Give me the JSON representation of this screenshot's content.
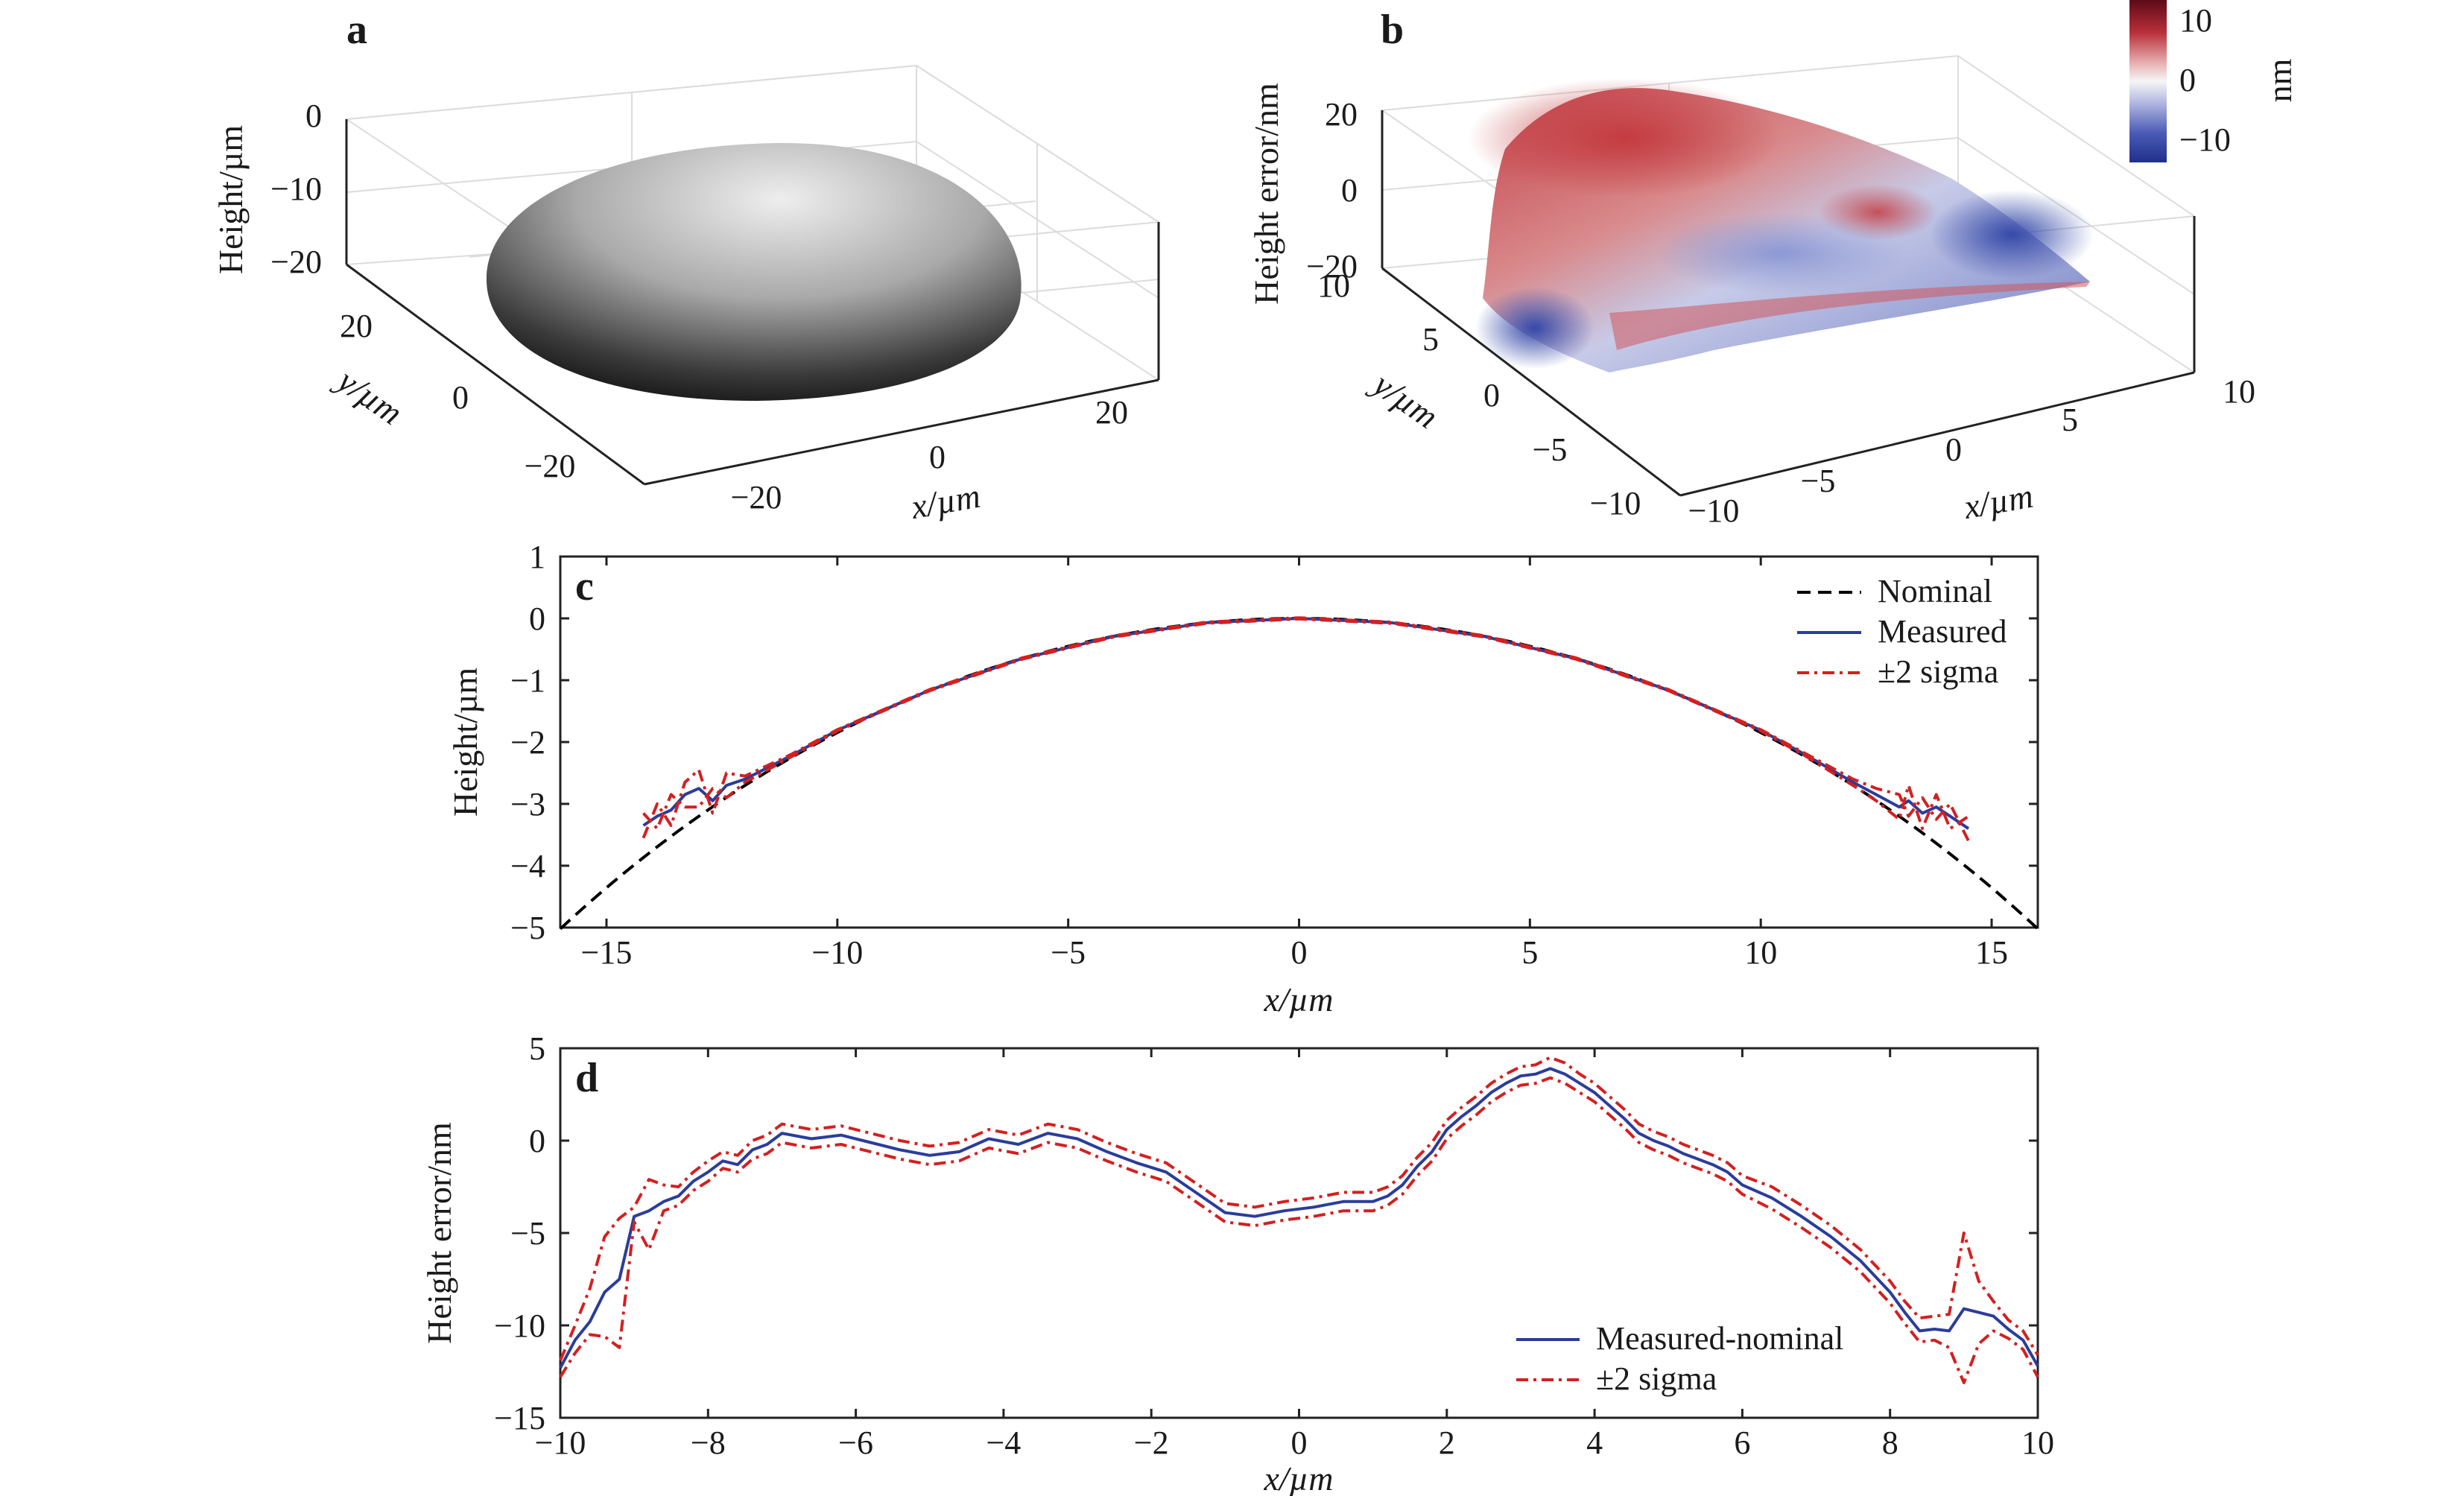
{
  "chart_data": [
    {
      "panel": "a",
      "type": "surface",
      "description_free": true,
      "zlabel": "Height/µm",
      "xlabel": "x/µm",
      "ylabel": "y/µm",
      "z_ticks": [
        "0",
        "−10",
        "−20"
      ],
      "y_ticks": [
        "20",
        "0",
        "−20"
      ],
      "x_ticks": [
        "−20",
        "0",
        "20"
      ],
      "x_range": [
        -30,
        30
      ],
      "y_range": [
        -30,
        30
      ],
      "z_range": [
        -25,
        0
      ],
      "colormap": "gray",
      "colors": {
        "surface_top": "#e6e6e6",
        "surface_bottom": "#111111"
      }
    },
    {
      "panel": "b",
      "type": "surface",
      "zlabel": "Height error/nm",
      "xlabel": "x/µm",
      "ylabel": "y/µm",
      "z_ticks": [
        "20",
        "0",
        "−20"
      ],
      "y_ticks": [
        "10",
        "5",
        "0",
        "−5",
        "−10"
      ],
      "x_ticks": [
        "−10",
        "−5",
        "0",
        "5",
        "10"
      ],
      "x_range": [
        -10,
        10
      ],
      "y_range": [
        -10,
        10
      ],
      "z_range": [
        -20,
        20
      ],
      "colorbar": {
        "label": "nm",
        "ticks": [
          "10",
          "0",
          "−10"
        ],
        "range": [
          -14,
          14
        ]
      },
      "colors": {
        "high": "#7a0b1c",
        "mid": "#f7f7f7",
        "low": "#2a3f9e"
      }
    },
    {
      "panel": "c",
      "type": "line",
      "xlabel": "x/µm",
      "ylabel": "Height/µm",
      "xlim": [
        -16,
        16
      ],
      "ylim": [
        -5,
        1
      ],
      "x_ticks": [
        "−15",
        "−10",
        "−5",
        "0",
        "5",
        "10",
        "15"
      ],
      "y_ticks": [
        "1",
        "0",
        "−1",
        "−2",
        "−3",
        "−4",
        "−5"
      ],
      "legend": [
        "Nominal",
        "Measured",
        "±2 sigma"
      ],
      "legend_position": "top-right",
      "series": [
        {
          "name": "Nominal",
          "style": "dashed",
          "color": "#000000",
          "curve": "circle",
          "radius_um": 28,
          "x": [
            -16,
            16
          ]
        },
        {
          "name": "Measured",
          "style": "solid",
          "color": "#2b3d9a",
          "x": [
            -14.2,
            -13.9,
            -13.6,
            -13.3,
            -13.0,
            -12.7,
            -12.4,
            -12.0,
            -11.0,
            -10.0,
            -8.0,
            -6.0,
            -4.0,
            -2.0,
            0.0,
            2.0,
            4.0,
            6.0,
            8.0,
            10.0,
            11.0,
            12.0,
            12.5,
            13.0,
            13.2,
            13.5,
            13.8,
            14.1,
            14.5
          ],
          "y": [
            -3.35,
            -3.2,
            -3.1,
            -2.85,
            -2.75,
            -2.95,
            -2.7,
            -2.6,
            -2.22,
            -1.81,
            -1.16,
            -0.65,
            -0.29,
            -0.07,
            0.0,
            -0.07,
            -0.29,
            -0.65,
            -1.16,
            -1.81,
            -2.22,
            -2.65,
            -2.85,
            -3.05,
            -2.95,
            -3.15,
            -3.05,
            -3.2,
            -3.4
          ]
        },
        {
          "name": "±2 sigma",
          "style": "dashdot",
          "color": "#d32020",
          "x": [
            -14.2,
            -13.9,
            -13.6,
            -13.3,
            -13.0,
            -12.7,
            -12.4,
            -12.0,
            -11.0,
            -10.0,
            -8.0,
            -6.0,
            -4.0,
            -2.0,
            0.0,
            2.0,
            4.0,
            6.0,
            8.0,
            10.0,
            11.0,
            12.0,
            12.5,
            13.0,
            13.2,
            13.5,
            13.8,
            14.1,
            14.5
          ],
          "y": [
            -3.55,
            -3.0,
            -3.35,
            -2.65,
            -2.45,
            -3.15,
            -2.5,
            -2.55,
            -2.2,
            -1.8,
            -1.15,
            -0.64,
            -0.28,
            -0.06,
            0.01,
            -0.06,
            -0.28,
            -0.64,
            -1.15,
            -1.8,
            -2.2,
            -2.6,
            -2.75,
            -2.85,
            -3.2,
            -2.9,
            -3.25,
            -3.0,
            -3.6
          ]
        },
        {
          "name": "±2 sigma lower",
          "style": "dashdot",
          "color": "#d32020",
          "x": [
            -14.2,
            -13.9,
            -13.6,
            -13.3,
            -13.0,
            -12.7,
            -12.4,
            -12.0,
            -11.0,
            -10.0,
            -8.0,
            -6.0,
            -4.0,
            -2.0,
            0.0,
            2.0,
            4.0,
            6.0,
            8.0,
            10.0,
            11.0,
            12.0,
            12.5,
            13.0,
            13.2,
            13.5,
            13.8,
            14.1,
            14.5
          ],
          "y": [
            -3.15,
            -3.4,
            -2.85,
            -3.05,
            -3.05,
            -2.75,
            -2.9,
            -2.65,
            -2.24,
            -1.82,
            -1.17,
            -0.66,
            -0.3,
            -0.08,
            -0.01,
            -0.08,
            -0.3,
            -0.66,
            -1.17,
            -1.82,
            -2.24,
            -2.7,
            -2.95,
            -3.25,
            -2.7,
            -3.4,
            -2.85,
            -3.4,
            -3.2
          ]
        }
      ]
    },
    {
      "panel": "d",
      "type": "line",
      "xlabel": "x/µm",
      "ylabel": "Height error/nm",
      "xlim": [
        -10,
        10
      ],
      "ylim": [
        -15,
        5
      ],
      "x_ticks": [
        "−10",
        "−8",
        "−6",
        "−4",
        "−2",
        "0",
        "2",
        "4",
        "6",
        "8",
        "10"
      ],
      "y_ticks": [
        "5",
        "0",
        "−5",
        "−10",
        "−15"
      ],
      "legend": [
        "Measured-nominal",
        "±2 sigma"
      ],
      "legend_position": "bottom-right",
      "x": [
        -10.0,
        -9.8,
        -9.6,
        -9.4,
        -9.2,
        -9.0,
        -8.8,
        -8.6,
        -8.4,
        -8.2,
        -8.0,
        -7.8,
        -7.6,
        -7.4,
        -7.2,
        -7.0,
        -6.6,
        -6.2,
        -5.8,
        -5.4,
        -5.0,
        -4.6,
        -4.2,
        -3.8,
        -3.4,
        -3.0,
        -2.6,
        -2.2,
        -1.8,
        -1.4,
        -1.0,
        -0.6,
        -0.2,
        0.2,
        0.6,
        1.0,
        1.2,
        1.4,
        1.6,
        1.8,
        2.0,
        2.2,
        2.4,
        2.6,
        2.8,
        3.0,
        3.2,
        3.4,
        3.6,
        3.8,
        4.0,
        4.2,
        4.4,
        4.6,
        4.8,
        5.0,
        5.2,
        5.4,
        5.6,
        5.8,
        6.0,
        6.4,
        6.8,
        7.2,
        7.6,
        8.0,
        8.2,
        8.4,
        8.6,
        8.8,
        9.0,
        9.2,
        9.4,
        9.6,
        9.8,
        10.0
      ],
      "series": [
        {
          "name": "Measured-nominal",
          "style": "solid",
          "color": "#2b3d9a",
          "y": [
            -12.3,
            -10.8,
            -9.8,
            -8.2,
            -7.5,
            -4.1,
            -3.8,
            -3.3,
            -3.0,
            -2.2,
            -1.7,
            -1.1,
            -1.3,
            -0.5,
            -0.2,
            0.4,
            0.1,
            0.3,
            -0.1,
            -0.5,
            -0.8,
            -0.6,
            0.1,
            -0.2,
            0.4,
            0.1,
            -0.6,
            -1.2,
            -1.7,
            -2.8,
            -3.9,
            -4.1,
            -3.8,
            -3.6,
            -3.3,
            -3.3,
            -3.0,
            -2.4,
            -1.4,
            -0.6,
            0.6,
            1.3,
            1.9,
            2.6,
            3.1,
            3.5,
            3.6,
            3.9,
            3.6,
            3.1,
            2.6,
            1.9,
            1.2,
            0.4,
            0.0,
            -0.3,
            -0.7,
            -1.0,
            -1.3,
            -1.7,
            -2.4,
            -3.1,
            -4.1,
            -5.2,
            -6.5,
            -8.2,
            -9.3,
            -10.3,
            -10.2,
            -10.3,
            -9.1,
            -9.3,
            -9.5,
            -10.2,
            -10.8,
            -12.2
          ]
        },
        {
          "name": "±2 sigma",
          "style": "dashdot",
          "color": "#d32020",
          "y": [
            -11.9,
            -10.0,
            -8.0,
            -5.2,
            -4.2,
            -3.6,
            -2.1,
            -2.4,
            -2.5,
            -1.7,
            -1.1,
            -0.6,
            -0.8,
            0.0,
            0.3,
            0.9,
            0.6,
            0.8,
            0.4,
            0.0,
            -0.3,
            -0.1,
            0.6,
            0.3,
            0.9,
            0.6,
            -0.1,
            -0.7,
            -1.2,
            -2.3,
            -3.4,
            -3.6,
            -3.3,
            -3.1,
            -2.8,
            -2.8,
            -2.5,
            -1.9,
            -0.9,
            -0.1,
            1.1,
            1.8,
            2.4,
            3.1,
            3.6,
            4.0,
            4.1,
            4.5,
            4.2,
            3.6,
            3.1,
            2.4,
            1.7,
            0.9,
            0.5,
            0.2,
            -0.2,
            -0.5,
            -0.8,
            -1.2,
            -1.9,
            -2.5,
            -3.5,
            -4.6,
            -5.9,
            -7.6,
            -8.7,
            -9.6,
            -9.5,
            -9.4,
            -5.0,
            -7.6,
            -8.7,
            -9.7,
            -10.3,
            -11.6
          ]
        },
        {
          "name": "±2 sigma lower",
          "style": "dashdot",
          "color": "#d32020",
          "y": [
            -12.8,
            -11.5,
            -10.5,
            -10.6,
            -11.2,
            -4.4,
            -5.9,
            -3.8,
            -3.5,
            -2.7,
            -2.2,
            -1.5,
            -1.7,
            -1.0,
            -0.7,
            -0.1,
            -0.4,
            -0.2,
            -0.6,
            -1.0,
            -1.3,
            -1.1,
            -0.4,
            -0.7,
            -0.1,
            -0.4,
            -1.1,
            -1.7,
            -2.2,
            -3.3,
            -4.4,
            -4.6,
            -4.3,
            -4.1,
            -3.8,
            -3.8,
            -3.5,
            -2.9,
            -1.9,
            -1.1,
            0.1,
            0.8,
            1.4,
            2.1,
            2.6,
            3.0,
            3.1,
            3.4,
            3.1,
            2.6,
            2.1,
            1.4,
            0.7,
            -0.1,
            -0.5,
            -0.8,
            -1.2,
            -1.5,
            -1.8,
            -2.2,
            -2.9,
            -3.7,
            -4.7,
            -5.8,
            -7.1,
            -8.8,
            -9.9,
            -10.9,
            -10.8,
            -11.2,
            -13.1,
            -11.0,
            -10.3,
            -10.7,
            -11.3,
            -12.8
          ]
        }
      ]
    }
  ]
}
